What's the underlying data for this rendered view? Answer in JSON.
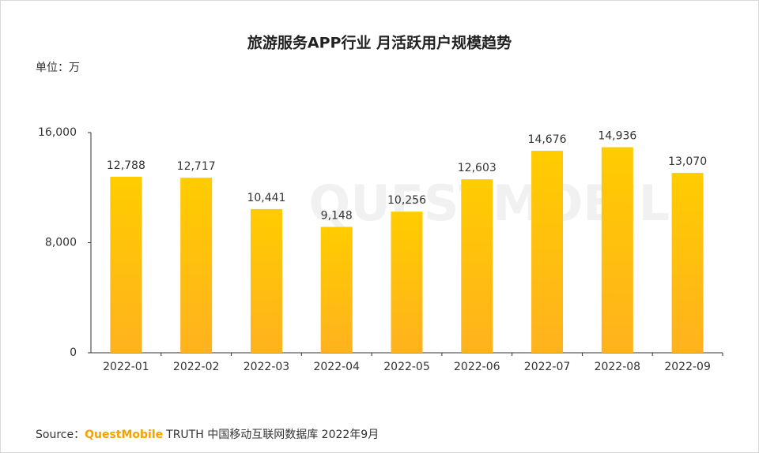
{
  "chart_data": {
    "type": "bar",
    "title": "旅游服务APP行业 月活跃用户规模趋势",
    "unit": "单位：万",
    "watermark": "QUESTMOBILE",
    "categories": [
      "2022-01",
      "2022-02",
      "2022-03",
      "2022-04",
      "2022-05",
      "2022-06",
      "2022-07",
      "2022-08",
      "2022-09"
    ],
    "values": [
      12788,
      12717,
      10441,
      9148,
      10256,
      12603,
      14676,
      14936,
      13070
    ],
    "value_labels": [
      "12,788",
      "12,717",
      "10,441",
      "9,148",
      "10,256",
      "12,603",
      "14,676",
      "14,936",
      "13,070"
    ],
    "color": "#ffcc00",
    "ylim": [
      0,
      16000
    ],
    "yticks": [
      0,
      {
        "value": 8000,
        "label": "8,000"
      },
      {
        "value": 16000,
        "label": "16,000"
      }
    ],
    "source_label": "Source：",
    "source_brand": "QuestMobile",
    "source_text": "TRUTH 中国移动互联网数据库 2022年9月"
  }
}
